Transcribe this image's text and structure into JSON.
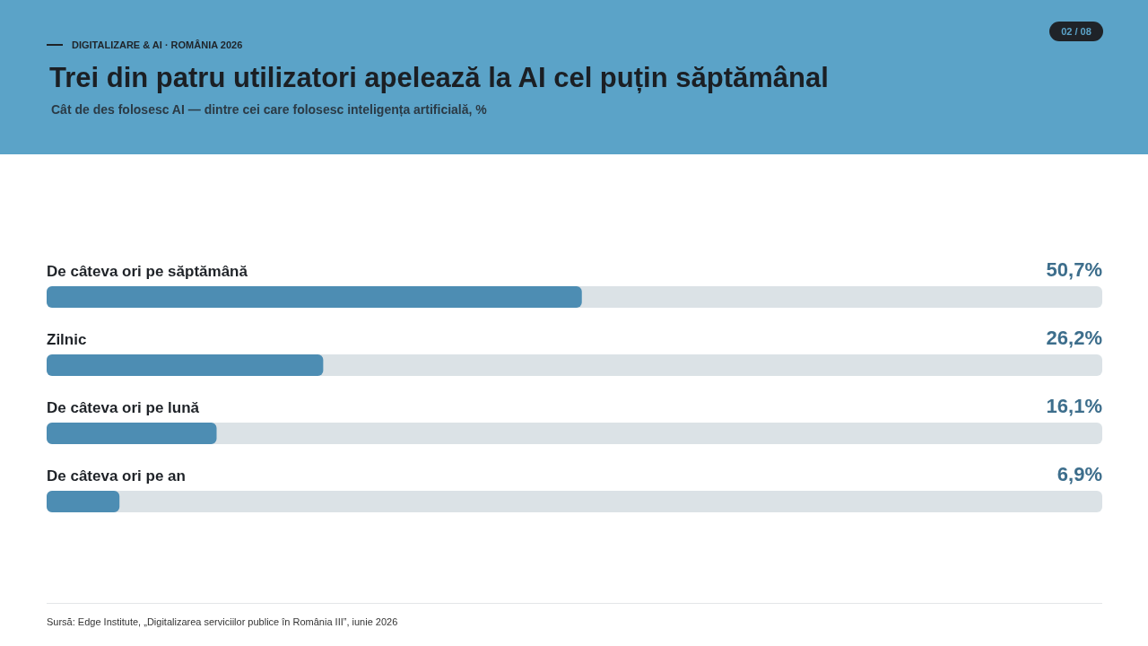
{
  "chart_data": {
    "type": "bar",
    "orientation": "horizontal",
    "title": "Trei din patru utilizatori apelează la AI cel puțin săptămânal",
    "subtitle": "Cât de des folosesc AI — dintre cei care folosesc inteligența artificială, %",
    "categories": [
      "De câteva ori pe săptămână",
      "Zilnic",
      "De câteva ori pe lună",
      "De câteva ori pe an"
    ],
    "values": [
      50.7,
      26.2,
      16.1,
      6.9
    ],
    "value_labels": [
      "50,7%",
      "26,2%",
      "16,1%",
      "6,9%"
    ],
    "color": "#4d8db3",
    "xlim": [
      0,
      100
    ],
    "tick_labels": "y",
    "annotations": [
      "DIGITALIZARE & AI · ROMÂNIA 2026",
      "02 / 08",
      "Sursă: Edge Institute, „Digitalizarea serviciilor publice în România III”, iunie 2026"
    ]
  }
}
